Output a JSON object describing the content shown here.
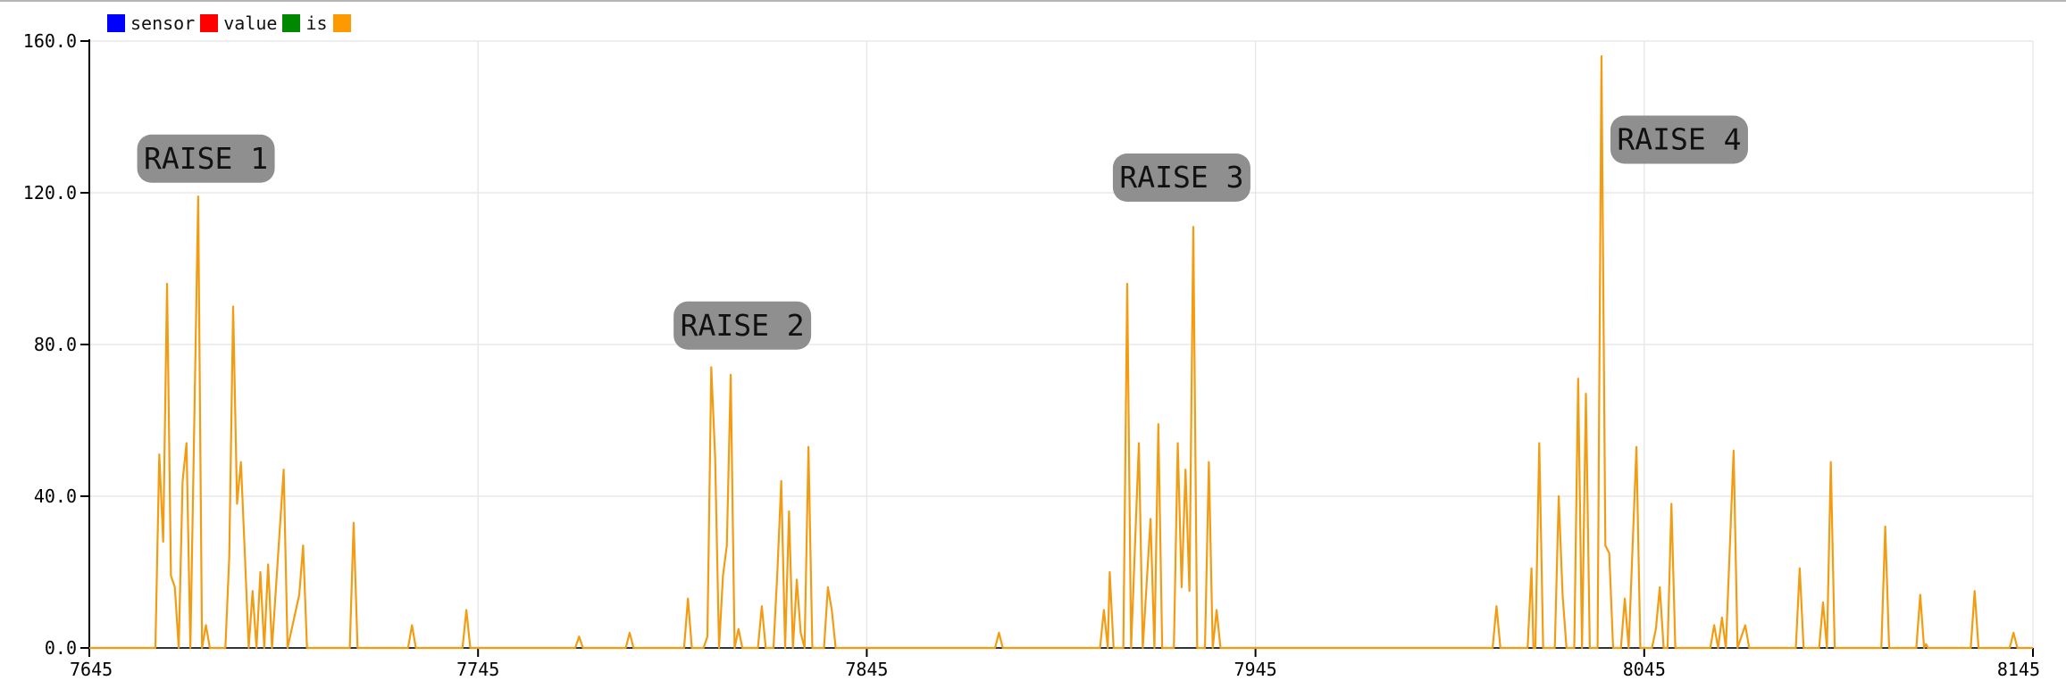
{
  "chart_data": {
    "type": "line",
    "legend": {
      "placement": "top-left",
      "items": [
        {
          "label": "sensor",
          "color": "#0000ff"
        },
        {
          "label": "value",
          "color": "#ff0000"
        },
        {
          "label": "is",
          "color": "#008800"
        },
        {
          "label": "",
          "color": "#ff9900"
        }
      ]
    },
    "xlim": [
      7645,
      8145
    ],
    "ylim": [
      0,
      160
    ],
    "x_ticks": [
      "7645",
      "7745",
      "7845",
      "7945",
      "8045",
      "8145"
    ],
    "y_ticks": [
      "0.0",
      "40.0",
      "80.0",
      "120.0",
      "160.0"
    ],
    "grid": true,
    "line_color": "#f39c12",
    "baseline_color": "#333333",
    "series": [
      {
        "color": "#f39c12",
        "points": [
          [
            7645,
            0
          ],
          [
            7662,
            0
          ],
          [
            7663,
            51
          ],
          [
            7664,
            28
          ],
          [
            7665,
            96
          ],
          [
            7666,
            19
          ],
          [
            7667,
            16
          ],
          [
            7668,
            0
          ],
          [
            7669,
            44
          ],
          [
            7670,
            54
          ],
          [
            7671,
            0
          ],
          [
            7673,
            119
          ],
          [
            7674,
            0
          ],
          [
            7675,
            6
          ],
          [
            7676,
            0
          ],
          [
            7680,
            0
          ],
          [
            7681,
            24
          ],
          [
            7682,
            90
          ],
          [
            7683,
            38
          ],
          [
            7684,
            49
          ],
          [
            7685,
            25
          ],
          [
            7686,
            0
          ],
          [
            7687,
            15
          ],
          [
            7688,
            0
          ],
          [
            7689,
            20
          ],
          [
            7690,
            0
          ],
          [
            7691,
            22
          ],
          [
            7692,
            0
          ],
          [
            7695,
            47
          ],
          [
            7696,
            0
          ],
          [
            7699,
            14
          ],
          [
            7700,
            27
          ],
          [
            7701,
            0
          ],
          [
            7712,
            0
          ],
          [
            7713,
            33
          ],
          [
            7714,
            0
          ],
          [
            7727,
            0
          ],
          [
            7728,
            6
          ],
          [
            7729,
            0
          ],
          [
            7741,
            0
          ],
          [
            7742,
            10
          ],
          [
            7743,
            0
          ],
          [
            7770,
            0
          ],
          [
            7771,
            3
          ],
          [
            7772,
            0
          ],
          [
            7783,
            0
          ],
          [
            7784,
            4
          ],
          [
            7785,
            0
          ],
          [
            7798,
            0
          ],
          [
            7799,
            13
          ],
          [
            7800,
            0
          ],
          [
            7803,
            0
          ],
          [
            7804,
            3
          ],
          [
            7805,
            74
          ],
          [
            7806,
            50
          ],
          [
            7807,
            0
          ],
          [
            7808,
            19
          ],
          [
            7809,
            27
          ],
          [
            7810,
            72
          ],
          [
            7811,
            0
          ],
          [
            7812,
            5
          ],
          [
            7813,
            0
          ],
          [
            7817,
            0
          ],
          [
            7818,
            11
          ],
          [
            7819,
            0
          ],
          [
            7821,
            0
          ],
          [
            7822,
            20
          ],
          [
            7823,
            44
          ],
          [
            7824,
            0
          ],
          [
            7825,
            36
          ],
          [
            7826,
            0
          ],
          [
            7827,
            18
          ],
          [
            7828,
            4
          ],
          [
            7829,
            0
          ],
          [
            7830,
            53
          ],
          [
            7831,
            0
          ],
          [
            7834,
            0
          ],
          [
            7835,
            16
          ],
          [
            7836,
            10
          ],
          [
            7837,
            0
          ],
          [
            7878,
            0
          ],
          [
            7879,
            4
          ],
          [
            7880,
            0
          ],
          [
            7905,
            0
          ],
          [
            7906,
            10
          ],
          [
            7907,
            0
          ],
          [
            7907.5,
            20
          ],
          [
            7908.5,
            0
          ],
          [
            7911,
            0
          ],
          [
            7912,
            96
          ],
          [
            7913,
            0
          ],
          [
            7915,
            54
          ],
          [
            7916,
            0
          ],
          [
            7918,
            34
          ],
          [
            7919,
            0
          ],
          [
            7920,
            59
          ],
          [
            7921,
            0
          ],
          [
            7924,
            0
          ],
          [
            7925,
            54
          ],
          [
            7926,
            16
          ],
          [
            7927,
            47
          ],
          [
            7928,
            15
          ],
          [
            7929,
            111
          ],
          [
            7930,
            0
          ],
          [
            7932,
            0
          ],
          [
            7933,
            49
          ],
          [
            7934,
            0
          ],
          [
            7935,
            10
          ],
          [
            7936,
            0
          ],
          [
            8006,
            0
          ],
          [
            8007,
            11
          ],
          [
            8008,
            0
          ],
          [
            8015,
            0
          ],
          [
            8016,
            21
          ],
          [
            8016.5,
            0
          ],
          [
            8017,
            0
          ],
          [
            8018,
            54
          ],
          [
            8019,
            0
          ],
          [
            8022,
            0
          ],
          [
            8023,
            40
          ],
          [
            8024,
            14
          ],
          [
            8025,
            0
          ],
          [
            8027,
            0
          ],
          [
            8028,
            71
          ],
          [
            8029,
            0
          ],
          [
            8030,
            67
          ],
          [
            8031,
            0
          ],
          [
            8033,
            0
          ],
          [
            8034,
            156
          ],
          [
            8035,
            27
          ],
          [
            8036,
            25
          ],
          [
            8037,
            0
          ],
          [
            8039,
            0
          ],
          [
            8040,
            13
          ],
          [
            8041,
            0
          ],
          [
            8043,
            53
          ],
          [
            8044,
            0
          ],
          [
            8047,
            0
          ],
          [
            8048,
            5
          ],
          [
            8049,
            16
          ],
          [
            8050,
            0
          ],
          [
            8051,
            0
          ],
          [
            8052,
            38
          ],
          [
            8053,
            0
          ],
          [
            8055,
            0
          ],
          [
            8056,
            0
          ],
          [
            8062,
            0
          ],
          [
            8063,
            6
          ],
          [
            8064,
            0
          ],
          [
            8065,
            8
          ],
          [
            8066,
            0
          ],
          [
            8068,
            52
          ],
          [
            8069,
            0
          ],
          [
            8071,
            6
          ],
          [
            8072,
            0
          ],
          [
            8084,
            0
          ],
          [
            8085,
            21
          ],
          [
            8086,
            0
          ],
          [
            8090,
            0
          ],
          [
            8091,
            12
          ],
          [
            8092,
            0
          ],
          [
            8093,
            49
          ],
          [
            8094,
            0
          ],
          [
            8106,
            0
          ],
          [
            8107,
            32
          ],
          [
            8108,
            0
          ],
          [
            8115,
            0
          ],
          [
            8116,
            14
          ],
          [
            8117,
            0
          ],
          [
            8117.5,
            1
          ],
          [
            8118,
            0
          ],
          [
            8129,
            0
          ],
          [
            8130,
            15
          ],
          [
            8131,
            0
          ],
          [
            8139,
            0
          ],
          [
            8140,
            4
          ],
          [
            8141,
            0
          ],
          [
            8145,
            0
          ]
        ]
      }
    ],
    "annotations": [
      {
        "text": "RAISE 1",
        "x": 7675,
        "y": 129
      },
      {
        "text": "RAISE 2",
        "x": 7813,
        "y": 85
      },
      {
        "text": "RAISE 3",
        "x": 7926,
        "y": 124
      },
      {
        "text": "RAISE 4",
        "x": 8054,
        "y": 134
      }
    ]
  }
}
